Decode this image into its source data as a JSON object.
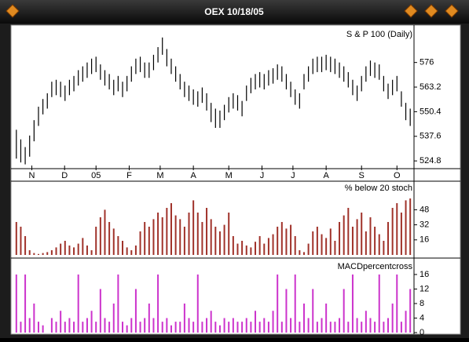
{
  "window": {
    "title": "OEX 10/18/05"
  },
  "chart_data": [
    {
      "type": "ohlc",
      "title": "S & P 100 (Daily)",
      "color": "#000000",
      "xlim": [
        0,
        90
      ],
      "xticks": [
        {
          "value": 4,
          "label": "N"
        },
        {
          "value": 11.4,
          "label": "D"
        },
        {
          "value": 18.5,
          "label": "05"
        },
        {
          "value": 26,
          "label": "F"
        },
        {
          "value": 33,
          "label": "M"
        },
        {
          "value": 40.5,
          "label": "A"
        },
        {
          "value": 48.5,
          "label": "M"
        },
        {
          "value": 56,
          "label": "J"
        },
        {
          "value": 63,
          "label": "J"
        },
        {
          "value": 70.5,
          "label": "A"
        },
        {
          "value": 78.5,
          "label": "S"
        },
        {
          "value": 86.5,
          "label": "O"
        }
      ],
      "ylim": [
        522,
        593
      ],
      "yticks": [
        524.8,
        537.6,
        550.4,
        563.2,
        576
      ],
      "high": [
        541,
        536,
        532,
        538,
        546,
        553,
        557,
        560,
        566,
        567,
        566,
        564,
        567,
        569,
        572,
        574,
        576,
        578,
        579,
        575,
        572,
        570,
        567,
        569,
        566,
        569,
        574,
        578,
        579,
        576,
        576,
        580,
        584,
        589,
        583,
        578,
        574,
        570,
        566,
        564,
        562,
        561,
        563,
        560,
        555,
        552,
        551,
        554,
        558,
        560,
        559,
        556,
        564,
        568,
        570,
        571,
        570,
        572,
        573,
        575,
        574,
        570,
        566,
        562,
        560,
        570,
        574,
        578,
        579,
        579,
        580,
        579,
        578,
        576,
        574,
        571,
        567,
        564,
        569,
        574,
        577,
        576,
        575,
        569,
        565,
        567,
        569,
        561,
        555,
        552
      ],
      "low": [
        526,
        524,
        523,
        527,
        535,
        543,
        549,
        552,
        558,
        559,
        558,
        556,
        559,
        561,
        564,
        566,
        568,
        570,
        571,
        567,
        564,
        562,
        559,
        561,
        558,
        561,
        566,
        570,
        571,
        568,
        568,
        572,
        576,
        580,
        574,
        570,
        566,
        562,
        558,
        556,
        554,
        553,
        555,
        551,
        545,
        542,
        542,
        546,
        550,
        552,
        551,
        548,
        556,
        560,
        562,
        563,
        562,
        564,
        565,
        567,
        566,
        562,
        558,
        554,
        552,
        562,
        566,
        570,
        571,
        571,
        572,
        571,
        570,
        568,
        566,
        563,
        559,
        556,
        561,
        566,
        569,
        568,
        567,
        561,
        557,
        559,
        561,
        553,
        546,
        543
      ]
    },
    {
      "type": "bar",
      "title": "% below 20 stoch",
      "color": "#a0322a",
      "ylim": [
        0,
        65
      ],
      "yticks": [
        16,
        32,
        48
      ],
      "values": [
        35,
        30,
        20,
        5,
        2,
        1,
        2,
        3,
        5,
        8,
        12,
        15,
        10,
        8,
        12,
        18,
        10,
        5,
        30,
        40,
        48,
        35,
        28,
        20,
        15,
        8,
        5,
        10,
        25,
        35,
        30,
        38,
        45,
        40,
        50,
        55,
        42,
        38,
        30,
        45,
        58,
        45,
        35,
        50,
        38,
        30,
        25,
        32,
        45,
        20,
        12,
        15,
        10,
        8,
        14,
        20,
        12,
        18,
        22,
        30,
        35,
        28,
        32,
        20,
        5,
        3,
        12,
        25,
        30,
        22,
        18,
        28,
        15,
        35,
        42,
        50,
        30,
        38,
        45,
        25,
        40,
        30,
        22,
        15,
        35,
        50,
        55,
        45,
        58,
        60
      ]
    },
    {
      "type": "bar",
      "title": "MACDpercentcross",
      "color": "#cc33cc",
      "ylim": [
        0,
        17.5
      ],
      "yticks": [
        0,
        4,
        8,
        12,
        16
      ],
      "values": [
        16,
        3,
        16,
        4,
        8,
        3,
        2,
        0,
        4,
        3,
        6,
        3,
        4,
        3,
        16,
        3,
        4,
        6,
        3,
        12,
        4,
        3,
        8,
        16,
        3,
        2,
        4,
        12,
        3,
        4,
        8,
        4,
        16,
        3,
        4,
        2,
        3,
        3,
        8,
        4,
        3,
        16,
        3,
        4,
        6,
        3,
        2,
        4,
        3,
        4,
        3,
        3,
        4,
        3,
        6,
        3,
        4,
        3,
        6,
        16,
        3,
        12,
        4,
        16,
        3,
        8,
        4,
        12,
        3,
        4,
        8,
        3,
        3,
        4,
        12,
        3,
        16,
        4,
        3,
        6,
        4,
        3,
        16,
        3,
        4,
        8,
        16,
        3,
        6,
        12
      ]
    }
  ]
}
